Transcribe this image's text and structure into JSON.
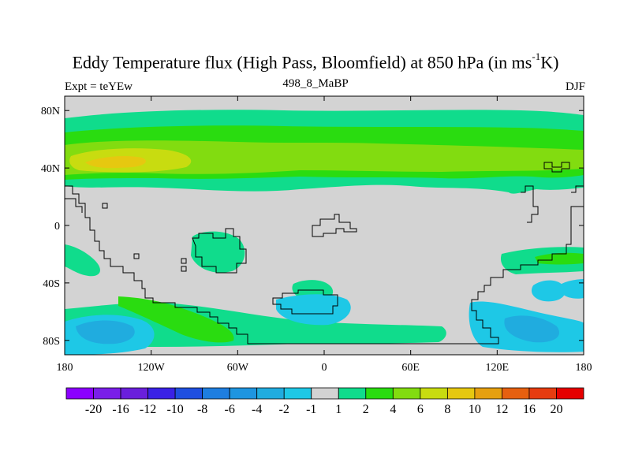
{
  "title": {
    "main": "Eddy Temperature flux (High Pass, Bloomfield) at 850 hPa (in ms",
    "sup": "-1",
    "unit_end": "K)"
  },
  "left_string": "Expt = teYEw",
  "center_string": "498_8_MaBP",
  "right_string": "DJF",
  "x_tick_labels": [
    "180",
    "120W",
    "60W",
    "0",
    "60E",
    "120E",
    "180"
  ],
  "y_tick_labels": [
    "80N",
    "40N",
    "0",
    "40S",
    "80S"
  ],
  "colorbar": {
    "labels": [
      "-20",
      "-16",
      "-12",
      "-10",
      "-8",
      "-6",
      "-4",
      "-2",
      "-1",
      "1",
      "2",
      "4",
      "6",
      "8",
      "10",
      "12",
      "16",
      "20"
    ],
    "colors": [
      "#8b00ff",
      "#7a1ee8",
      "#6a1fdc",
      "#3a22e6",
      "#1f4fe0",
      "#1e7ee0",
      "#1e95e0",
      "#20acdf",
      "#1ec8e6",
      "#d3d3d3",
      "#10dc8c",
      "#2adc10",
      "#82dc10",
      "#c8dc10",
      "#e6c810",
      "#e6a010",
      "#e66010",
      "#e63c10",
      "#e60000"
    ]
  },
  "colors": {
    "land_background": "#d3d3d3",
    "coast": "#000000"
  }
}
